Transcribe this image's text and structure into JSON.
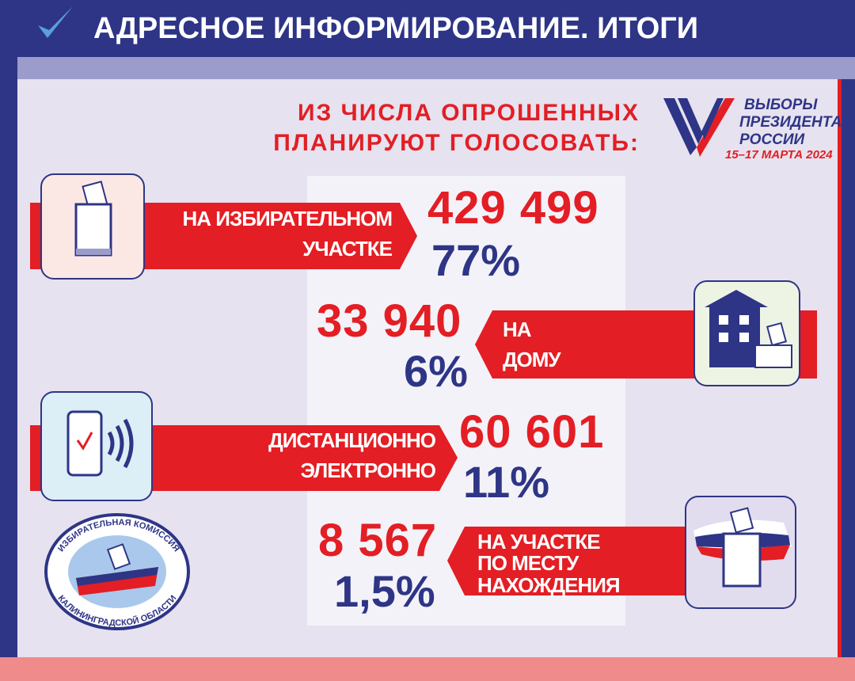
{
  "header": {
    "title": "АДРЕСНОЕ ИНФОРМИРОВАНИЕ. ИТОГИ"
  },
  "subtitle": [
    "ИЗ ЧИСЛА ОПРОШЕННЫХ",
    "ПЛАНИРУЮТ ГОЛОСОВАТЬ:"
  ],
  "logo": {
    "lines": [
      "ВЫБОРЫ",
      "ПРЕЗИДЕНТА",
      "РОССИИ"
    ],
    "dates": "15–17 МАРТА 2024"
  },
  "items": [
    {
      "label": [
        "НА ИЗБИРАТЕЛЬНОМ",
        "УЧАСТКЕ"
      ],
      "count": "429 499",
      "percent": "77%"
    },
    {
      "label": [
        "НА",
        "ДОМУ"
      ],
      "count": "33 940",
      "percent": "6%"
    },
    {
      "label": [
        "ДИСТАНЦИОННО",
        "ЭЛЕКТРОННО"
      ],
      "count": "60 601",
      "percent": "11%"
    },
    {
      "label": [
        "НА УЧАСТКЕ",
        "ПО МЕСТУ",
        "НАХОЖДЕНИЯ"
      ],
      "count": "8 567",
      "percent": "1,5%"
    }
  ],
  "emblem": {
    "top": "ИЗБИРАТЕЛЬНАЯ КОМИССИЯ",
    "bottom": "КАЛИНИНГРАДСКОЙ ОБЛАСТИ"
  }
}
